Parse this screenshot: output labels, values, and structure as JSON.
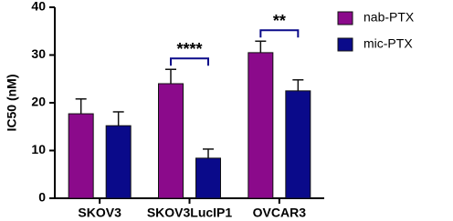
{
  "chart_data": {
    "type": "bar",
    "y_label": "IC50 (nM)",
    "categories": [
      "SKOV3",
      "SKOV3LucIP1",
      "OVCAR3"
    ],
    "series": [
      {
        "name": "nab-PTX",
        "color": "#8b0a8b",
        "values": [
          17.7,
          24.0,
          30.5
        ],
        "errors": [
          3.1,
          3.0,
          2.4
        ]
      },
      {
        "name": "mic-PTX",
        "color": "#0a0a8a",
        "values": [
          15.2,
          8.4,
          22.5
        ],
        "errors": [
          2.9,
          1.9,
          2.3
        ]
      }
    ],
    "significance": [
      null,
      "****",
      "**"
    ],
    "ylim": [
      0,
      40
    ],
    "yticks": [
      0,
      10,
      20,
      30,
      40
    ],
    "legend": "right"
  }
}
